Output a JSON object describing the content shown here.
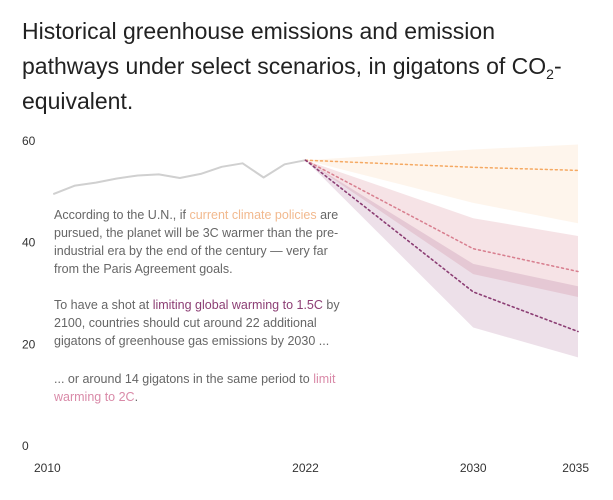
{
  "title": {
    "main": "Historical greenhouse emissions and emission pathways under select scenarios, in gigatons of CO",
    "sub": "2",
    "tail": "-equivalent."
  },
  "annotations": {
    "a1": {
      "pre": "According to the U.N., if ",
      "highlight": "current climate policies",
      "post": " are pursued, the planet will be 3C warmer than the pre-industrial era by the end of the century — very far from the Paris Agreement goals."
    },
    "a2": {
      "pre": "To have a shot at ",
      "highlight": "limiting global warming to 1.5C",
      "post": " by 2100, countries should cut around 22 additional gigatons of greenhouse gas emissions by 2030 ..."
    },
    "a3": {
      "pre": "... or around 14 gigatons in the same period to ",
      "highlight": "limit warming to 2C",
      "post": "."
    }
  },
  "colors": {
    "historical": "#d0d0d0",
    "current_policy": "#f5a962",
    "two_c": "#d87f8f",
    "one_five_c": "#8c3e74",
    "text_muted": "#666666"
  },
  "chart_data": {
    "type": "area",
    "xlim": [
      2010,
      2035
    ],
    "ylim": [
      0,
      60
    ],
    "x_ticks": [
      2010,
      2022,
      2030,
      2035
    ],
    "y_ticks": [
      0,
      20,
      40,
      60
    ],
    "grid": false,
    "series": [
      {
        "name": "historical",
        "x": [
          2010,
          2011,
          2012,
          2013,
          2014,
          2015,
          2016,
          2017,
          2018,
          2019,
          2020,
          2021,
          2022
        ],
        "y": [
          50.8,
          52.4,
          53.0,
          53.8,
          54.4,
          54.6,
          53.9,
          54.7,
          56.1,
          56.8,
          54.0,
          56.6,
          57.4
        ]
      },
      {
        "name": "current climate policies",
        "x": [
          2022,
          2030,
          2035
        ],
        "y": [
          57.4,
          56.0,
          55.4
        ],
        "y_low": [
          57.4,
          49.0,
          45.0
        ],
        "y_high": [
          57.4,
          59.5,
          60.5
        ]
      },
      {
        "name": "limit warming to 2C",
        "x": [
          2022,
          2030,
          2035
        ],
        "y": [
          57.4,
          40.0,
          35.5
        ],
        "y_low": [
          57.4,
          35.0,
          30.5
        ],
        "y_high": [
          57.4,
          46.0,
          42.5
        ]
      },
      {
        "name": "limiting global warming to 1.5C",
        "x": [
          2022,
          2030,
          2035
        ],
        "y": [
          57.4,
          31.5,
          23.7
        ],
        "y_low": [
          57.4,
          24.5,
          18.6
        ],
        "y_high": [
          57.4,
          37.0,
          32.6
        ]
      }
    ]
  }
}
